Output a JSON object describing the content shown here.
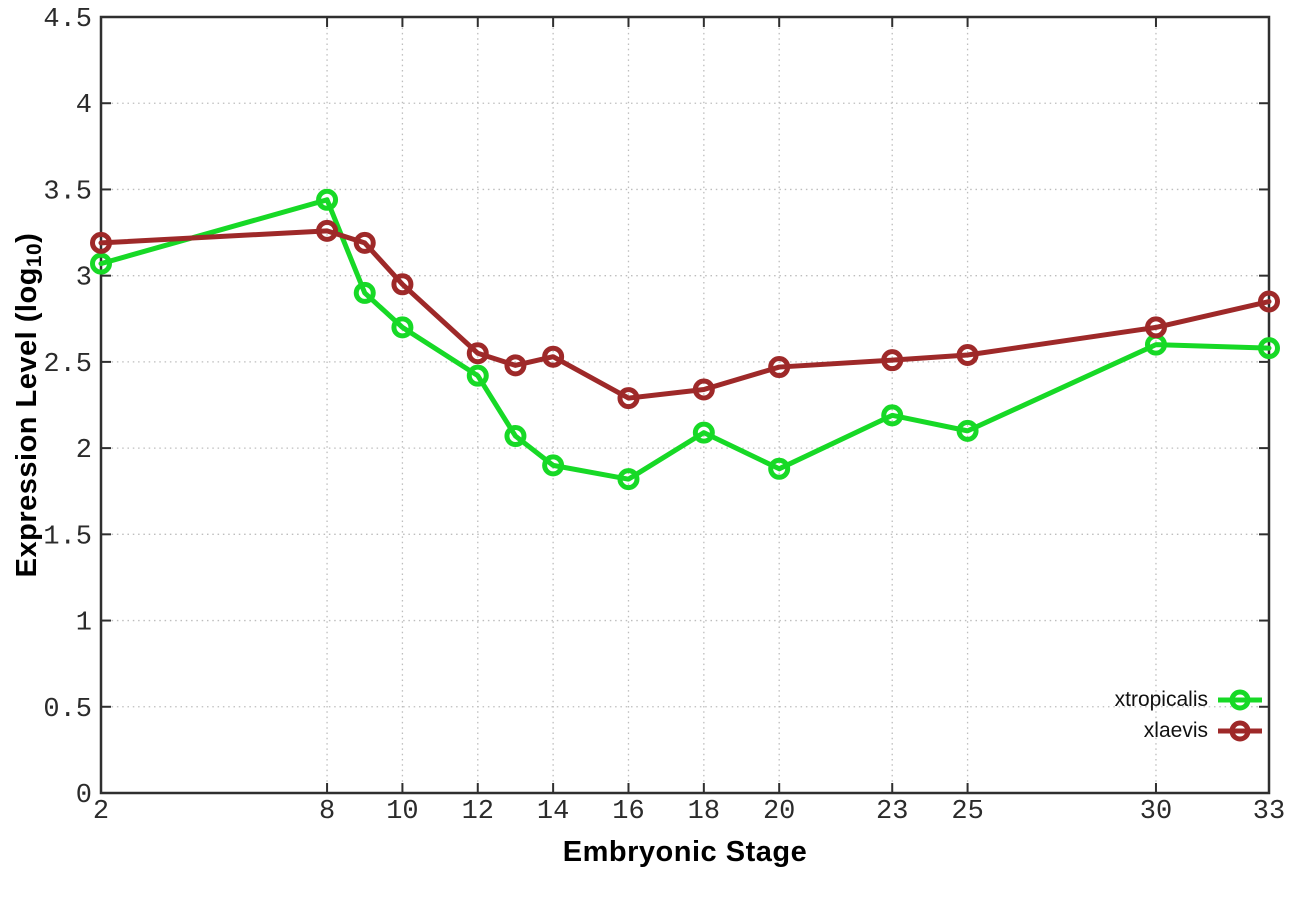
{
  "chart": {
    "ylabel_pre": "Expression Level (log",
    "ylabel_sub": "10",
    "ylabel_post": ")",
    "background": "#ffffff",
    "axis_color": "#2f2f2f",
    "grid_color": "#bdbdbd",
    "tick_label_color": "#2b2b2b"
  },
  "chart_data": {
    "type": "line",
    "title": "",
    "xlabel": "Embryonic Stage",
    "ylabel": "Expression Level (log10)",
    "xlim": [
      2,
      33
    ],
    "ylim": [
      0,
      4.5
    ],
    "xticks": [
      2,
      8,
      10,
      12,
      14,
      16,
      18,
      20,
      23,
      25,
      30,
      33
    ],
    "ytick_labels": [
      "0",
      "0.5",
      "1",
      "1.5",
      "2",
      "2.5",
      "3",
      "3.5",
      "4",
      "4.5"
    ],
    "yticks": [
      0,
      0.5,
      1,
      1.5,
      2,
      2.5,
      3,
      3.5,
      4,
      4.5
    ],
    "grid": true,
    "legend_position": "bottom-right",
    "marker": "open-circle",
    "x": [
      2,
      8,
      9,
      10,
      12,
      13,
      14,
      16,
      18,
      20,
      23,
      25,
      30,
      33
    ],
    "series": [
      {
        "name": "xtropicalis",
        "color": "#17d926",
        "values": [
          3.07,
          3.44,
          2.9,
          2.7,
          2.42,
          2.07,
          1.9,
          1.82,
          2.09,
          1.88,
          2.19,
          2.1,
          2.6,
          2.58
        ]
      },
      {
        "name": "xlaevis",
        "color": "#9e2929",
        "values": [
          3.19,
          3.26,
          3.19,
          2.95,
          2.55,
          2.48,
          2.53,
          2.29,
          2.34,
          2.47,
          2.51,
          2.54,
          2.7,
          2.85
        ]
      }
    ]
  }
}
